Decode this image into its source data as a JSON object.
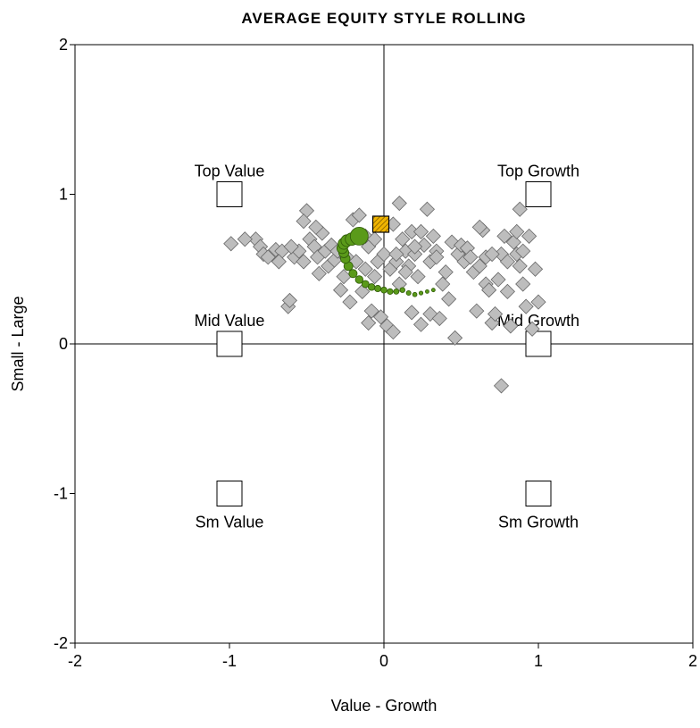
{
  "chart_data": {
    "type": "scatter",
    "title": "AVERAGE EQUITY STYLE ROLLING",
    "x_label": "Value - Growth",
    "y_label": "Small - Large",
    "xlim": [
      -2,
      2
    ],
    "ylim": [
      -2,
      2
    ],
    "xticks": [
      -2,
      -1,
      0,
      1,
      2
    ],
    "yticks": [
      -2,
      -1,
      0,
      1,
      2
    ],
    "style_boxes": [
      {
        "label": "Top Value",
        "x": -1,
        "y": 1
      },
      {
        "label": "Top Growth",
        "x": 1,
        "y": 1
      },
      {
        "label": "Mid Value",
        "x": -1,
        "y": 0
      },
      {
        "label": "Mid Growth",
        "x": 1,
        "y": 0
      },
      {
        "label": "Sm Value",
        "x": -1,
        "y": -1
      },
      {
        "label": "Sm Growth",
        "x": 1,
        "y": -1
      }
    ],
    "series": [
      {
        "marker": "diamond",
        "color": "#bdbdbd",
        "x": [
          -0.99,
          -0.83,
          -0.8,
          -0.78,
          -0.75,
          -0.7,
          -0.66,
          -0.62,
          -0.61,
          -0.58,
          -0.55,
          -0.52,
          -0.5,
          -0.52,
          -0.48,
          -0.45,
          -0.43,
          -0.42,
          -0.4,
          -0.38,
          -0.36,
          -0.34,
          -0.32,
          -0.3,
          -0.28,
          -0.26,
          -0.24,
          -0.22,
          -0.2,
          -0.18,
          -0.16,
          -0.14,
          -0.12,
          -0.1,
          -0.1,
          -0.08,
          -0.06,
          -0.04,
          -0.02,
          0.0,
          0.02,
          0.04,
          0.06,
          0.06,
          0.08,
          0.1,
          0.1,
          0.12,
          0.14,
          0.16,
          0.18,
          0.18,
          0.2,
          0.22,
          0.24,
          0.26,
          0.28,
          0.3,
          0.3,
          0.32,
          0.34,
          0.36,
          0.38,
          0.4,
          0.42,
          0.44,
          0.46,
          0.48,
          0.5,
          0.52,
          0.54,
          0.56,
          0.58,
          0.6,
          0.62,
          0.64,
          0.66,
          0.66,
          0.68,
          0.7,
          0.72,
          0.74,
          0.76,
          0.76,
          0.78,
          0.8,
          0.8,
          0.82,
          0.84,
          0.86,
          0.88,
          0.88,
          0.9,
          0.9,
          0.92,
          0.94,
          0.96,
          0.98,
          1.0,
          0.86,
          -0.9,
          -0.68,
          -0.6,
          -0.44,
          0.2,
          0.24,
          -0.12,
          0.34,
          0.14,
          0.08,
          -0.06,
          0.62,
          0.7
        ],
        "values": [
          0.67,
          0.7,
          0.65,
          0.6,
          0.58,
          0.63,
          0.62,
          0.25,
          0.29,
          0.58,
          0.62,
          0.55,
          0.89,
          0.82,
          0.7,
          0.65,
          0.58,
          0.47,
          0.74,
          0.62,
          0.52,
          0.66,
          0.56,
          0.62,
          0.36,
          0.45,
          0.58,
          0.28,
          0.83,
          0.55,
          0.86,
          0.35,
          0.5,
          0.65,
          0.14,
          0.22,
          0.45,
          0.55,
          0.18,
          0.6,
          0.12,
          0.5,
          0.8,
          0.08,
          0.55,
          0.94,
          0.4,
          0.7,
          0.62,
          0.52,
          0.21,
          0.75,
          0.6,
          0.45,
          0.13,
          0.66,
          0.9,
          0.55,
          0.2,
          0.72,
          0.62,
          0.17,
          0.4,
          0.48,
          0.3,
          0.68,
          0.04,
          0.6,
          0.66,
          0.55,
          0.64,
          0.58,
          0.48,
          0.22,
          0.52,
          0.76,
          0.4,
          0.58,
          0.36,
          0.14,
          0.2,
          0.43,
          -0.28,
          0.6,
          0.72,
          0.35,
          0.55,
          0.12,
          0.68,
          0.6,
          0.9,
          0.52,
          0.4,
          0.62,
          0.25,
          0.72,
          0.1,
          0.5,
          0.28,
          0.75,
          0.7,
          0.55,
          0.65,
          0.78,
          0.65,
          0.75,
          0.72,
          0.58,
          0.48,
          0.6,
          0.7,
          0.78,
          0.6
        ]
      },
      {
        "marker": "circle",
        "color": "#5a9a1a",
        "x": [
          0.32,
          0.28,
          0.24,
          0.2,
          0.16,
          0.12,
          0.08,
          0.04,
          0.0,
          -0.04,
          -0.08,
          -0.12,
          -0.16,
          -0.2,
          -0.23,
          -0.25,
          -0.26,
          -0.27,
          -0.26,
          -0.24,
          -0.21,
          -0.16
        ],
        "values": [
          0.36,
          0.35,
          0.34,
          0.33,
          0.34,
          0.36,
          0.35,
          0.35,
          0.36,
          0.37,
          0.38,
          0.4,
          0.43,
          0.47,
          0.52,
          0.57,
          0.61,
          0.64,
          0.67,
          0.69,
          0.7,
          0.72
        ],
        "sizes": [
          2,
          2,
          2.2,
          2.4,
          2.6,
          2.8,
          3,
          3.2,
          3.4,
          3.6,
          3.8,
          4,
          4.3,
          4.6,
          5,
          5.3,
          5.6,
          6,
          6.3,
          6.6,
          7,
          10
        ]
      },
      {
        "marker": "square",
        "color": "#f0b400",
        "x": [
          -0.02
        ],
        "values": [
          0.8
        ]
      }
    ]
  }
}
